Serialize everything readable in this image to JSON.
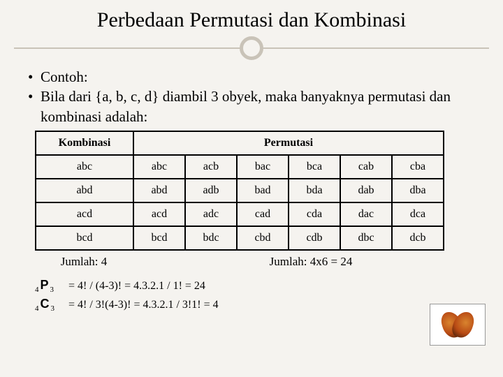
{
  "title": "Perbedaan Permutasi dan Kombinasi",
  "bullets": {
    "b1": "Contoh:",
    "b2": "Bila dari {a, b, c, d} diambil 3 obyek, maka banyaknya permutasi dan kombinasi adalah:"
  },
  "table": {
    "header_comb": "Kombinasi",
    "header_perm": "Permutasi",
    "rows": [
      {
        "k": "abc",
        "p": [
          "abc",
          "acb",
          "bac",
          "bca",
          "cab",
          "cba"
        ]
      },
      {
        "k": "abd",
        "p": [
          "abd",
          "adb",
          "bad",
          "bda",
          "dab",
          "dba"
        ]
      },
      {
        "k": "acd",
        "p": [
          "acd",
          "adc",
          "cad",
          "cda",
          "dac",
          "dca"
        ]
      },
      {
        "k": "bcd",
        "p": [
          "bcd",
          "bdc",
          "cbd",
          "cdb",
          "dbc",
          "dcb"
        ]
      }
    ]
  },
  "summary": {
    "left": "Jumlah: 4",
    "right": "Jumlah: 4x6 = 24"
  },
  "formulas": {
    "p_n": "4",
    "p_sym": "P",
    "p_r": "3",
    "p_text": "= 4! / (4-3)! = 4.3.2.1 / 1! = 24",
    "c_n": "4",
    "c_sym": "C",
    "c_r": "3",
    "c_text": "= 4! / 3!(4-3)! = 4.3.2.1 / 3!1! = 4"
  }
}
